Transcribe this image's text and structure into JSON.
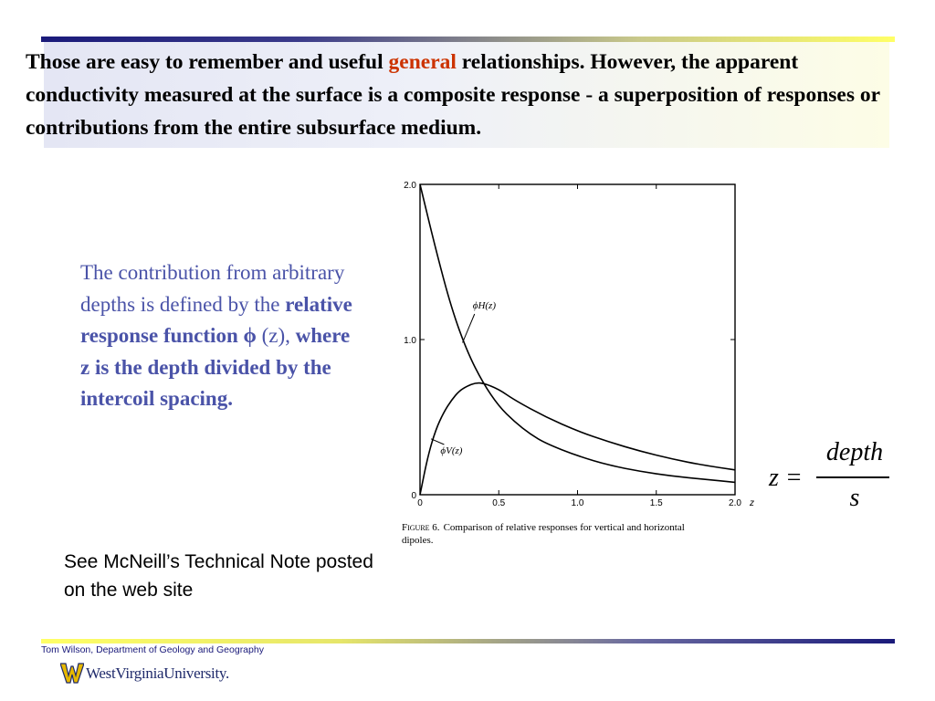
{
  "slide": {
    "title_before": "Those are easy to remember and useful ",
    "title_accent": "general",
    "title_after": " relationships. However,  the apparent conductivity measured at the surface is a composite response - a superposition of responses or contributions from the entire subsurface medium.",
    "desc_1": "The contribution from arbitrary depths is defined by the ",
    "desc_2": "relative  response function ",
    "desc_phi": "ϕ",
    "desc_3": " (z), ",
    "desc_4": "where z is the depth divided by the intercoil spacing.",
    "note": "See McNeill’s Technical Note posted on the web site",
    "formula": {
      "lhs": "z =",
      "numerator": "depth",
      "denominator": "s"
    },
    "footer": "Tom Wilson, Department of Geology and Geography",
    "logo_text": "WestVirginiaUniversity."
  },
  "colors": {
    "accent": "#cc3300",
    "body_text": "#4a53a8",
    "navy": "#1a1a7a"
  },
  "chart_data": {
    "type": "line",
    "x_axis": {
      "label": "z",
      "range": [
        0,
        2.0
      ],
      "ticks": [
        0,
        0.5,
        1.0,
        1.5,
        2.0
      ],
      "tick_labels": [
        "0",
        "0.5",
        "1.0",
        "1.5",
        "2.0"
      ]
    },
    "y_axis": {
      "range": [
        0,
        2.0
      ],
      "ticks": [
        0,
        1.0,
        2.0
      ],
      "tick_labels": [
        "0",
        "1.0",
        "2.0"
      ]
    },
    "series": [
      {
        "name": "ϕH(z)",
        "sub": "H",
        "x": [
          0,
          0.1,
          0.2,
          0.3,
          0.4,
          0.5,
          0.6,
          0.7,
          0.8,
          1.0,
          1.2,
          1.4,
          1.6,
          1.8,
          2.0
        ],
        "y": [
          2.0,
          1.58,
          1.2,
          0.92,
          0.72,
          0.57,
          0.47,
          0.39,
          0.33,
          0.25,
          0.19,
          0.15,
          0.12,
          0.1,
          0.08
        ]
      },
      {
        "name": "ϕV(z)",
        "sub": "V",
        "x": [
          0,
          0.05,
          0.1,
          0.15,
          0.2,
          0.25,
          0.3,
          0.35,
          0.4,
          0.5,
          0.6,
          0.8,
          1.0,
          1.2,
          1.4,
          1.6,
          1.8,
          2.0
        ],
        "y": [
          0,
          0.25,
          0.42,
          0.53,
          0.61,
          0.67,
          0.7,
          0.72,
          0.72,
          0.68,
          0.61,
          0.5,
          0.41,
          0.34,
          0.28,
          0.23,
          0.19,
          0.16
        ]
      }
    ],
    "caption_label": "Figure 6.",
    "caption_text": "Comparison of relative responses for vertical and horizontal dipoles."
  }
}
